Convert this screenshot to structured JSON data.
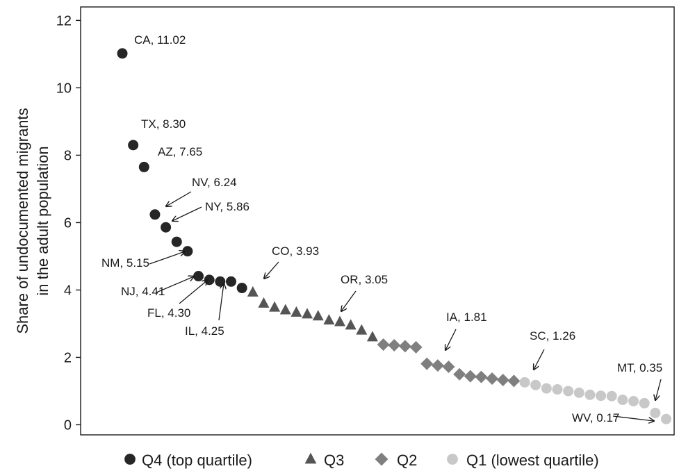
{
  "chart_data": {
    "type": "scatter",
    "title": "",
    "xlabel": "",
    "ylabel_lines": [
      "Share of undocumented migrants",
      "in the adult population"
    ],
    "ylim": [
      -0.3,
      12.4
    ],
    "yticks": [
      0,
      2,
      4,
      6,
      8,
      10,
      12
    ],
    "grid": false,
    "legend_position": "bottom",
    "colors": {
      "Q4": "#262626",
      "Q3": "#555555",
      "Q2": "#7f7f7f",
      "Q1": "#c8c8c8"
    },
    "series": [
      {
        "name": "Q4 (top quartile)",
        "marker": "circle",
        "x": [
          1,
          2,
          3,
          4,
          5,
          6,
          7,
          8,
          9,
          10,
          11,
          12
        ],
        "y": [
          11.02,
          8.3,
          7.65,
          6.24,
          5.86,
          5.43,
          5.15,
          4.41,
          4.3,
          4.25,
          4.25,
          4.06
        ]
      },
      {
        "name": "Q3",
        "marker": "triangle",
        "x": [
          13,
          14,
          15,
          16,
          17,
          18,
          19,
          20,
          21,
          22,
          23,
          24
        ],
        "y": [
          3.93,
          3.6,
          3.48,
          3.4,
          3.33,
          3.28,
          3.22,
          3.1,
          3.05,
          2.95,
          2.8,
          2.6
        ]
      },
      {
        "name": "Q2",
        "marker": "diamond",
        "x": [
          25,
          26,
          27,
          28,
          29,
          30,
          31,
          32,
          33,
          34,
          35,
          36,
          37
        ],
        "y": [
          2.38,
          2.36,
          2.33,
          2.3,
          1.81,
          1.76,
          1.72,
          1.5,
          1.44,
          1.42,
          1.37,
          1.33,
          1.3
        ]
      },
      {
        "name": "Q1 (lowest quartile)",
        "marker": "circle",
        "x": [
          38,
          39,
          40,
          41,
          42,
          43,
          44,
          45,
          46,
          47,
          48,
          49,
          50,
          51
        ],
        "y": [
          1.26,
          1.18,
          1.08,
          1.05,
          1.0,
          0.95,
          0.89,
          0.86,
          0.85,
          0.74,
          0.7,
          0.64,
          0.35,
          0.17
        ]
      }
    ],
    "annotations": [
      {
        "text": "CA, 11.02"
      },
      {
        "text": "TX, 8.30"
      },
      {
        "text": "AZ, 7.65"
      },
      {
        "text": "NV, 6.24"
      },
      {
        "text": "NY, 5.86"
      },
      {
        "text": "NM, 5.15"
      },
      {
        "text": "NJ, 4.41"
      },
      {
        "text": "FL, 4.30"
      },
      {
        "text": "IL, 4.25"
      },
      {
        "text": "CO, 3.93"
      },
      {
        "text": "OR, 3.05"
      },
      {
        "text": "IA, 1.81"
      },
      {
        "text": "SC, 1.26"
      },
      {
        "text": "MT, 0.35"
      },
      {
        "text": "WV, 0.17"
      }
    ]
  }
}
